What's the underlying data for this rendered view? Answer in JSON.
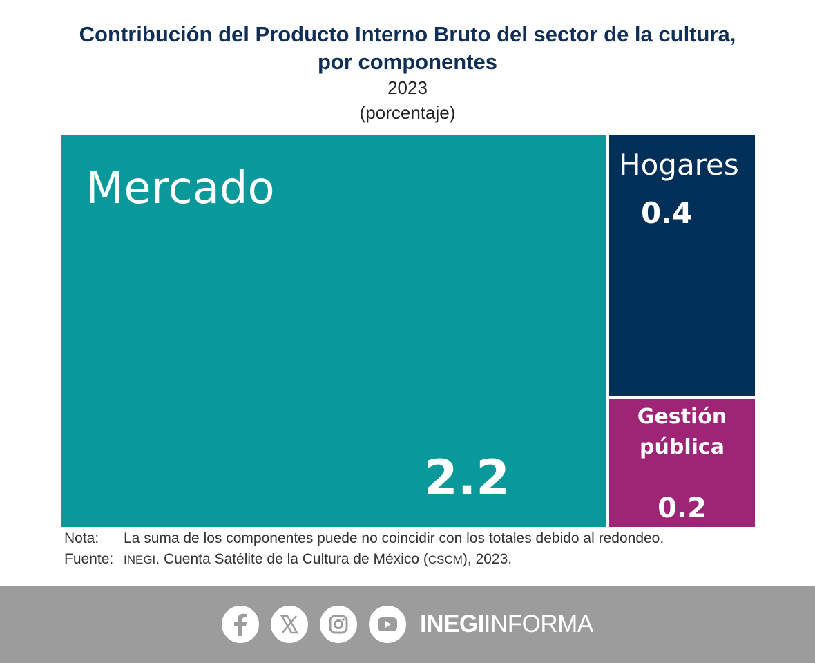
{
  "header": {
    "title_line1": "Contribución del Producto Interno Bruto del sector de la cultura,",
    "title_line2": "por componentes",
    "year": "2023",
    "unit": "(porcentaje)"
  },
  "chart_data": {
    "type": "treemap",
    "title": "Contribución del Producto Interno Bruto del sector de la cultura, por componentes",
    "subtitle": "2023",
    "unit": "(porcentaje)",
    "items": [
      {
        "name": "Mercado",
        "value": 2.2,
        "value_label": "2.2",
        "color": "#0a999b"
      },
      {
        "name": "Hogares",
        "value": 0.4,
        "value_label": "0.4",
        "color": "#003057"
      },
      {
        "name": "Gestión pública",
        "name_line1": "Gestión",
        "name_line2": "pública",
        "value": 0.2,
        "value_label": "0.2",
        "color": "#9e2476"
      }
    ]
  },
  "notes": {
    "nota_key": "Nota:",
    "nota_text": "La suma de los componentes puede no coincidir con los totales debido al redondeo.",
    "fuente_key": "Fuente:",
    "fuente_org": "INEGI",
    "fuente_text_mid": ". Cuenta Satélite de la Cultura de México (",
    "fuente_acronym": "CSCM",
    "fuente_text_end": "), 2023."
  },
  "footer": {
    "brand_bold": "INEGI",
    "brand_regular": "INFORMA",
    "icons": [
      "facebook-icon",
      "x-icon",
      "instagram-icon",
      "youtube-icon"
    ],
    "background_color": "#9c9c9c"
  }
}
